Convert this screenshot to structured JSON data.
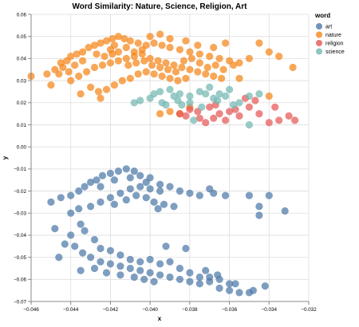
{
  "chart_data": {
    "type": "scatter",
    "title": "Word Similarity: Nature, Science, Religion, Art",
    "xlabel": "x",
    "ylabel": "y",
    "xlim": [
      -0.046,
      -0.032
    ],
    "ylim": [
      -0.07,
      0.06
    ],
    "x_ticks": [
      "−0.046",
      "−0.044",
      "−0.042",
      "−0.040",
      "−0.038",
      "−0.036",
      "−0.034",
      "−0.032"
    ],
    "y_ticks": [
      "0.06",
      "0.05",
      "0.04",
      "0.03",
      "0.02",
      "0.01",
      "0.00",
      "−0.01",
      "−0.02",
      "−0.03",
      "−0.04",
      "−0.05",
      "−0.06",
      "−0.07"
    ],
    "grid": true,
    "legend_title": "word",
    "legend_position": "top-right",
    "series": [
      {
        "name": "art",
        "color": "#4c78a8",
        "points": [
          [
            -0.045,
            -0.025
          ],
          [
            -0.0445,
            -0.023
          ],
          [
            -0.044,
            -0.022
          ],
          [
            -0.0436,
            -0.02
          ],
          [
            -0.0433,
            -0.018
          ],
          [
            -0.043,
            -0.016
          ],
          [
            -0.0427,
            -0.015
          ],
          [
            -0.0424,
            -0.013
          ],
          [
            -0.042,
            -0.012
          ],
          [
            -0.0416,
            -0.011
          ],
          [
            -0.0412,
            -0.01
          ],
          [
            -0.0408,
            -0.011
          ],
          [
            -0.0405,
            -0.013
          ],
          [
            -0.04,
            -0.014
          ],
          [
            -0.0395,
            -0.017
          ],
          [
            -0.039,
            -0.018
          ],
          [
            -0.0385,
            -0.02
          ],
          [
            -0.038,
            -0.021
          ],
          [
            -0.0375,
            -0.022
          ],
          [
            -0.037,
            -0.019
          ],
          [
            -0.0368,
            -0.021
          ],
          [
            -0.0362,
            -0.022
          ],
          [
            -0.035,
            -0.022
          ],
          [
            -0.034,
            -0.022
          ],
          [
            -0.0345,
            -0.031
          ],
          [
            -0.0332,
            -0.029
          ],
          [
            -0.0345,
            -0.027
          ],
          [
            -0.044,
            -0.03
          ],
          [
            -0.0436,
            -0.028
          ],
          [
            -0.043,
            -0.027
          ],
          [
            -0.0425,
            -0.025
          ],
          [
            -0.042,
            -0.023
          ],
          [
            -0.0415,
            -0.021
          ],
          [
            -0.041,
            -0.019
          ],
          [
            -0.0405,
            -0.018
          ],
          [
            -0.04,
            -0.019
          ],
          [
            -0.0395,
            -0.02
          ],
          [
            -0.0435,
            -0.035
          ],
          [
            -0.044,
            -0.04
          ],
          [
            -0.0438,
            -0.045
          ],
          [
            -0.0434,
            -0.048
          ],
          [
            -0.043,
            -0.05
          ],
          [
            -0.0425,
            -0.052
          ],
          [
            -0.042,
            -0.053
          ],
          [
            -0.0415,
            -0.054
          ],
          [
            -0.041,
            -0.055
          ],
          [
            -0.0405,
            -0.056
          ],
          [
            -0.04,
            -0.057
          ],
          [
            -0.0395,
            -0.058
          ],
          [
            -0.039,
            -0.059
          ],
          [
            -0.0385,
            -0.06
          ],
          [
            -0.038,
            -0.061
          ],
          [
            -0.0375,
            -0.062
          ],
          [
            -0.037,
            -0.061
          ],
          [
            -0.0365,
            -0.064
          ],
          [
            -0.036,
            -0.065
          ],
          [
            -0.0355,
            -0.066
          ],
          [
            -0.035,
            -0.066
          ],
          [
            -0.0342,
            -0.063
          ],
          [
            -0.0433,
            -0.038
          ],
          [
            -0.0428,
            -0.042
          ],
          [
            -0.0425,
            -0.046
          ],
          [
            -0.042,
            -0.047
          ],
          [
            -0.0415,
            -0.049
          ],
          [
            -0.041,
            -0.051
          ],
          [
            -0.0405,
            -0.052
          ],
          [
            -0.04,
            -0.051
          ],
          [
            -0.0395,
            -0.053
          ],
          [
            -0.039,
            -0.052
          ],
          [
            -0.0385,
            -0.055
          ],
          [
            -0.038,
            -0.057
          ],
          [
            -0.0375,
            -0.059
          ],
          [
            -0.037,
            -0.059
          ],
          [
            -0.0365,
            -0.06
          ],
          [
            -0.036,
            -0.062
          ],
          [
            -0.0448,
            -0.037
          ],
          [
            -0.0443,
            -0.044
          ],
          [
            -0.0446,
            -0.05
          ],
          [
            -0.0425,
            -0.018
          ],
          [
            -0.0418,
            -0.015
          ],
          [
            -0.041,
            -0.014
          ],
          [
            -0.0402,
            -0.016
          ],
          [
            -0.0398,
            -0.025
          ],
          [
            -0.0393,
            -0.026
          ],
          [
            -0.0388,
            -0.027
          ],
          [
            -0.0396,
            -0.028
          ],
          [
            -0.0392,
            -0.045
          ],
          [
            -0.0382,
            -0.046
          ],
          [
            -0.0372,
            -0.056
          ],
          [
            -0.0366,
            -0.058
          ],
          [
            -0.0357,
            -0.062
          ],
          [
            -0.0348,
            -0.065
          ],
          [
            -0.0435,
            -0.056
          ],
          [
            -0.0428,
            -0.055
          ],
          [
            -0.0422,
            -0.057
          ],
          [
            -0.0415,
            -0.058
          ],
          [
            -0.0408,
            -0.059
          ],
          [
            -0.0403,
            -0.06
          ],
          [
            -0.0398,
            -0.061
          ],
          [
            -0.0418,
            -0.026
          ],
          [
            -0.0412,
            -0.024
          ],
          [
            -0.0407,
            -0.022
          ],
          [
            -0.0402,
            -0.023
          ]
        ]
      },
      {
        "name": "nature",
        "color": "#f58518",
        "points": [
          [
            -0.046,
            0.032
          ],
          [
            -0.0452,
            0.033
          ],
          [
            -0.0448,
            0.035
          ],
          [
            -0.0445,
            0.038
          ],
          [
            -0.0442,
            0.039
          ],
          [
            -0.044,
            0.041
          ],
          [
            -0.0437,
            0.042
          ],
          [
            -0.0434,
            0.043
          ],
          [
            -0.0431,
            0.045
          ],
          [
            -0.0428,
            0.046
          ],
          [
            -0.0425,
            0.047
          ],
          [
            -0.0422,
            0.048
          ],
          [
            -0.0419,
            0.049
          ],
          [
            -0.0416,
            0.05
          ],
          [
            -0.0413,
            0.049
          ],
          [
            -0.041,
            0.048
          ],
          [
            -0.0406,
            0.047
          ],
          [
            -0.0402,
            0.046
          ],
          [
            -0.0398,
            0.047
          ],
          [
            -0.0394,
            0.046
          ],
          [
            -0.039,
            0.045
          ],
          [
            -0.0385,
            0.044
          ],
          [
            -0.038,
            0.043
          ],
          [
            -0.0375,
            0.042
          ],
          [
            -0.037,
            0.041
          ],
          [
            -0.0365,
            0.04
          ],
          [
            -0.036,
            0.039
          ],
          [
            -0.0355,
            0.038
          ],
          [
            -0.035,
            0.04
          ],
          [
            -0.0345,
            0.047
          ],
          [
            -0.034,
            0.043
          ],
          [
            -0.0328,
            0.036
          ],
          [
            -0.04,
            0.05
          ],
          [
            -0.0395,
            0.051
          ],
          [
            -0.039,
            0.049
          ],
          [
            -0.0382,
            0.048
          ],
          [
            -0.0376,
            0.046
          ],
          [
            -0.0368,
            0.045
          ],
          [
            -0.0362,
            0.047
          ],
          [
            -0.044,
            0.03
          ],
          [
            -0.0436,
            0.032
          ],
          [
            -0.0432,
            0.034
          ],
          [
            -0.0428,
            0.036
          ],
          [
            -0.0424,
            0.037
          ],
          [
            -0.042,
            0.038
          ],
          [
            -0.0416,
            0.039
          ],
          [
            -0.0412,
            0.04
          ],
          [
            -0.0408,
            0.041
          ],
          [
            -0.0404,
            0.042
          ],
          [
            -0.04,
            0.04
          ],
          [
            -0.0396,
            0.039
          ],
          [
            -0.0392,
            0.038
          ],
          [
            -0.0388,
            0.037
          ],
          [
            -0.0384,
            0.036
          ],
          [
            -0.038,
            0.035
          ],
          [
            -0.0376,
            0.034
          ],
          [
            -0.0372,
            0.033
          ],
          [
            -0.0368,
            0.032
          ],
          [
            -0.0364,
            0.031
          ],
          [
            -0.043,
            0.027
          ],
          [
            -0.0426,
            0.025
          ],
          [
            -0.0422,
            0.026
          ],
          [
            -0.0418,
            0.028
          ],
          [
            -0.0414,
            0.03
          ],
          [
            -0.041,
            0.031
          ],
          [
            -0.0406,
            0.033
          ],
          [
            -0.0402,
            0.034
          ],
          [
            -0.0398,
            0.033
          ],
          [
            -0.0394,
            0.032
          ],
          [
            -0.039,
            0.031
          ],
          [
            -0.0386,
            0.03
          ],
          [
            -0.0382,
            0.031
          ],
          [
            -0.042,
            0.044
          ],
          [
            -0.0418,
            0.046
          ],
          [
            -0.0412,
            0.045
          ],
          [
            -0.0408,
            0.043
          ],
          [
            -0.0404,
            0.044
          ],
          [
            -0.0444,
            0.036
          ],
          [
            -0.0438,
            0.037
          ],
          [
            -0.0434,
            0.039
          ],
          [
            -0.0446,
            0.033
          ],
          [
            -0.0441,
            0.034
          ],
          [
            -0.0427,
            0.042
          ],
          [
            -0.0423,
            0.041
          ],
          [
            -0.0419,
            0.042
          ],
          [
            -0.0416,
            0.043
          ],
          [
            -0.0411,
            0.037
          ],
          [
            -0.0407,
            0.038
          ],
          [
            -0.0403,
            0.039
          ],
          [
            -0.0399,
            0.037
          ],
          [
            -0.0395,
            0.036
          ],
          [
            -0.0391,
            0.035
          ],
          [
            -0.0387,
            0.034
          ],
          [
            -0.0383,
            0.039
          ],
          [
            -0.0379,
            0.04
          ],
          [
            -0.0375,
            0.038
          ],
          [
            -0.0371,
            0.036
          ],
          [
            -0.0367,
            0.037
          ],
          [
            -0.0363,
            0.035
          ],
          [
            -0.0358,
            0.037
          ],
          [
            -0.0395,
            0.015
          ],
          [
            -0.039,
            0.016
          ],
          [
            -0.0385,
            0.015
          ],
          [
            -0.038,
            0.018
          ],
          [
            -0.0425,
            0.022
          ],
          [
            -0.0435,
            0.024
          ],
          [
            -0.045,
            0.028
          ],
          [
            -0.0355,
            0.031
          ],
          [
            -0.034,
            0.023
          ],
          [
            -0.0335,
            0.041
          ]
        ]
      },
      {
        "name": "religion",
        "color": "#e45756",
        "points": [
          [
            -0.0385,
            0.015
          ],
          [
            -0.038,
            0.017
          ],
          [
            -0.0375,
            0.013
          ],
          [
            -0.037,
            0.018
          ],
          [
            -0.0365,
            0.015
          ],
          [
            -0.036,
            0.016
          ],
          [
            -0.0355,
            0.014
          ],
          [
            -0.035,
            0.018
          ],
          [
            -0.0345,
            0.015
          ],
          [
            -0.034,
            0.011
          ],
          [
            -0.0335,
            0.012
          ],
          [
            -0.033,
            0.014
          ],
          [
            -0.0362,
            0.012
          ],
          [
            -0.0372,
            0.011
          ],
          [
            -0.0352,
            0.022
          ],
          [
            -0.0367,
            0.019
          ],
          [
            -0.0357,
            0.017
          ],
          [
            -0.0347,
            0.021
          ],
          [
            -0.0337,
            0.018
          ],
          [
            -0.0327,
            0.012
          ],
          [
            -0.0382,
            0.014
          ],
          [
            -0.0376,
            0.016
          ],
          [
            -0.0368,
            0.013
          ]
        ]
      },
      {
        "name": "science",
        "color": "#72b7b2",
        "points": [
          [
            -0.0405,
            0.021
          ],
          [
            -0.04,
            0.022
          ],
          [
            -0.0395,
            0.025
          ],
          [
            -0.039,
            0.026
          ],
          [
            -0.0385,
            0.024
          ],
          [
            -0.038,
            0.023
          ],
          [
            -0.0375,
            0.025
          ],
          [
            -0.037,
            0.027
          ],
          [
            -0.0365,
            0.024
          ],
          [
            -0.036,
            0.026
          ],
          [
            -0.0355,
            0.02
          ],
          [
            -0.035,
            0.023
          ],
          [
            -0.0345,
            0.024
          ],
          [
            -0.0392,
            0.019
          ],
          [
            -0.0386,
            0.021
          ],
          [
            -0.038,
            0.02
          ],
          [
            -0.0374,
            0.018
          ],
          [
            -0.0368,
            0.022
          ],
          [
            -0.0362,
            0.023
          ],
          [
            -0.0398,
            0.024
          ],
          [
            -0.0378,
            0.012
          ],
          [
            -0.0358,
            0.019
          ],
          [
            -0.0408,
            0.02
          ],
          [
            -0.035,
            0.01
          ],
          [
            -0.0388,
            0.023
          ],
          [
            -0.0372,
            0.024
          ],
          [
            -0.0366,
            0.021
          ],
          [
            -0.0384,
            0.019
          ],
          [
            -0.0394,
            0.02
          ]
        ]
      }
    ]
  }
}
